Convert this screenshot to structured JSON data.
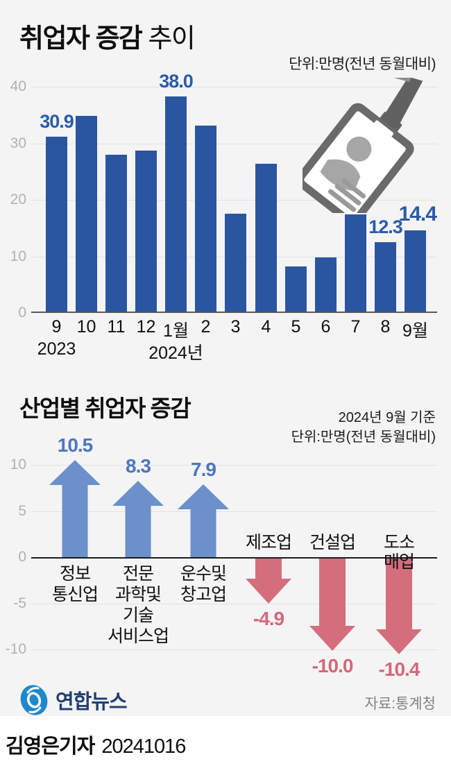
{
  "header1": {
    "title_bold": "취업자 증감",
    "title_light": "추이",
    "unit": "단위:만명(전년 동월대비)"
  },
  "header2": {
    "title": "산업별 취업자 증감",
    "asof": "2024년 9월 기준",
    "unit": "단위:만명(전년 동월대비)"
  },
  "footer": {
    "logo_text": "연합뉴스",
    "source": "자료:통계청"
  },
  "byline": {
    "reporter": "김영은기자",
    "date": "20241016"
  },
  "colors": {
    "bar_blue": "#2a56a1",
    "label_blue": "#2a5ba8",
    "arrow_blue": "#6b90cb",
    "value_blue": "#4c77be",
    "arrow_red": "#d56e7c",
    "text_red": "#d4687a"
  },
  "chart_data": [
    {
      "type": "bar",
      "title": "취업자 증감 추이",
      "unit": "단위:만명(전년 동월대비)",
      "categories": [
        "9",
        "10",
        "11",
        "12",
        "1월",
        "2",
        "3",
        "4",
        "5",
        "6",
        "7",
        "8",
        "9월"
      ],
      "values": [
        30.9,
        34.6,
        27.7,
        28.5,
        38.0,
        32.9,
        17.3,
        26.1,
        8.0,
        9.6,
        17.2,
        12.3,
        14.4
      ],
      "bar_labels": {
        "0": "30.9",
        "4": "38.0",
        "10": "17.2",
        "11": "12.3",
        "12": "14.4"
      },
      "emphasized_label_index": 12,
      "year_labels": [
        {
          "index": 0,
          "text": "2023"
        },
        {
          "index": 4,
          "text": "2024년"
        }
      ],
      "ylabel": "",
      "xlabel": "",
      "ylim": [
        0,
        40
      ],
      "yticks": [
        "40",
        "30",
        "20",
        "10",
        "0"
      ],
      "grid": true
    },
    {
      "type": "bar",
      "title": "산업별 취업자 증감",
      "subtitle": "2024년 9월 기준",
      "unit": "단위:만명(전년 동월대비)",
      "note": "arrows: up = increase (blue), down = decrease (red)",
      "series": [
        {
          "dir": "up",
          "name_lines": [
            "정보",
            "통신업"
          ],
          "value": 10.5,
          "display": "10.5"
        },
        {
          "dir": "up",
          "name_lines": [
            "전문",
            "과학및",
            "기술",
            "서비스업"
          ],
          "value": 8.3,
          "display": "8.3"
        },
        {
          "dir": "up",
          "name_lines": [
            "운수및",
            "창고업"
          ],
          "value": 7.9,
          "display": "7.9"
        },
        {
          "dir": "down",
          "name_lines": [
            "제조업"
          ],
          "value": -4.9,
          "display": "-4.9"
        },
        {
          "dir": "down",
          "name_lines": [
            "건설업"
          ],
          "value": -10.0,
          "display": "-10.0"
        },
        {
          "dir": "down",
          "name_lines": [
            "도소매업"
          ],
          "value": -10.4,
          "display": "-10.4"
        }
      ],
      "ylim": [
        -10,
        10
      ],
      "yticks": [
        "10",
        "5",
        "0",
        "-5",
        "-10"
      ],
      "grid": true
    }
  ]
}
